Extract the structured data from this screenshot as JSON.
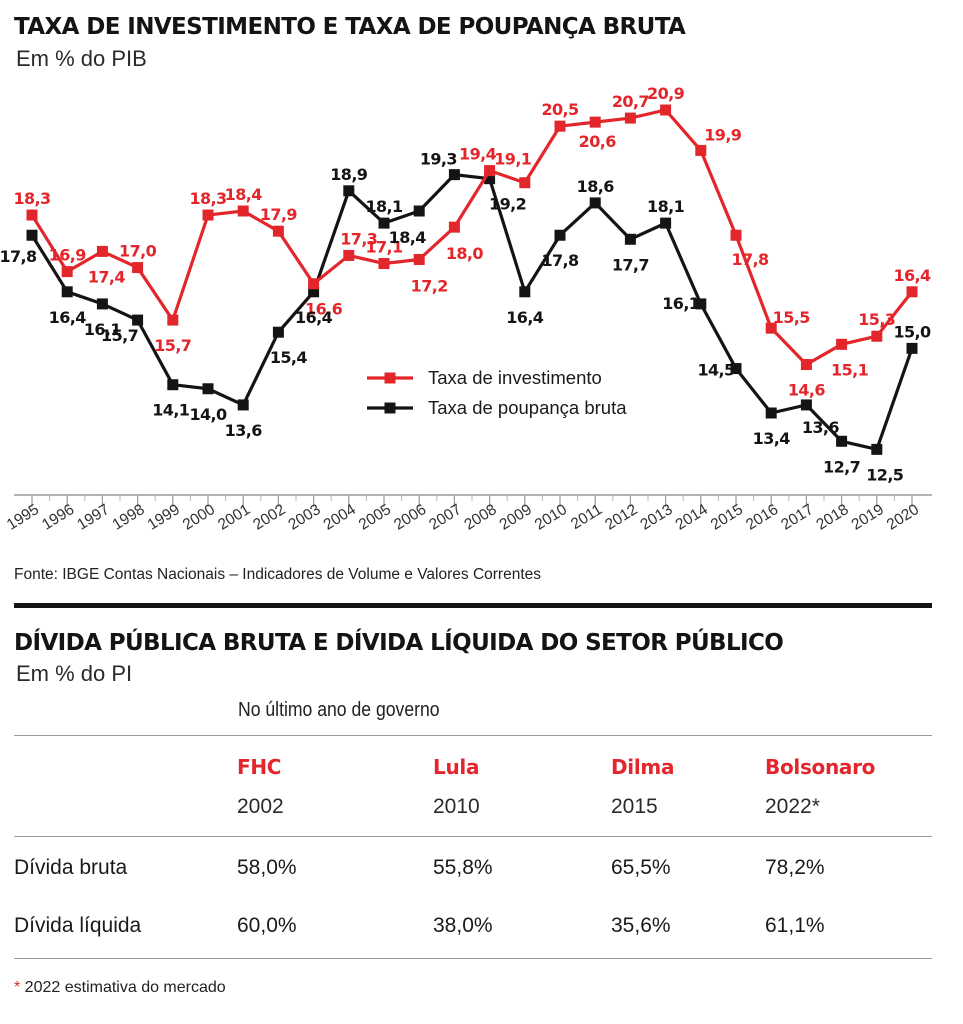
{
  "chart_data": {
    "type": "line",
    "title": "TAXA DE INVESTIMENTO E TAXA DE POUPANÇA BRUTA",
    "subtitle": "Em % do PIB",
    "x": [
      "1995",
      "1996",
      "1997",
      "1998",
      "1999",
      "2000",
      "2001",
      "2002",
      "2003",
      "2004",
      "2005",
      "2006",
      "2007",
      "2008",
      "2009",
      "2010",
      "2011",
      "2012",
      "2013",
      "2014",
      "2015",
      "2016",
      "2017",
      "2018",
      "2019",
      "2020"
    ],
    "series": [
      {
        "name": "Taxa de investimento",
        "color": "#e3262b",
        "values": [
          18.3,
          16.9,
          17.4,
          17.0,
          15.7,
          18.3,
          18.4,
          17.9,
          16.6,
          17.3,
          17.1,
          17.2,
          18.0,
          19.4,
          19.1,
          20.5,
          20.6,
          20.7,
          20.9,
          19.9,
          17.8,
          15.5,
          14.6,
          15.1,
          15.3,
          16.4
        ],
        "labels": [
          "18,3",
          "16,9",
          "17,4",
          "17,0",
          "15,7",
          "18,3",
          "18,4",
          "17,9",
          "16,6",
          "17,3",
          "17,1",
          "17,2",
          "18,0",
          "19,4",
          "19,1",
          "20,5",
          "20,6",
          "20,7",
          "20,9",
          "19,9",
          "17,8",
          "15,5",
          "14,6",
          "15,1",
          "15,3",
          "16,4"
        ]
      },
      {
        "name": "Taxa de poupança bruta",
        "color": "#141414",
        "values": [
          17.8,
          16.4,
          16.1,
          15.7,
          14.1,
          14.0,
          13.6,
          15.4,
          16.4,
          18.9,
          18.1,
          18.4,
          19.3,
          19.2,
          16.4,
          17.8,
          18.6,
          17.7,
          18.1,
          16.1,
          14.5,
          13.4,
          13.6,
          12.7,
          12.5,
          15.0
        ],
        "labels": [
          "17,8",
          "16,4",
          "16,1",
          "15,7",
          "14,1",
          "14,0",
          "13,6",
          "15,4",
          "16,4",
          "18,9",
          "18,1",
          "18,4",
          "19,3",
          "19,2",
          "16,4",
          "17,8",
          "18,6",
          "17,7",
          "18,1",
          "16,1",
          "14,5",
          "13,4",
          "13,6",
          "12,7",
          "12,5",
          "15,0"
        ]
      }
    ],
    "legend": "center",
    "grid": false,
    "source": "Fonte: IBGE Contas Nacionais – Indicadores de Volume e Valores Correntes"
  },
  "table": {
    "title": "DÍVIDA PÚBLICA BRUTA E DÍVIDA LÍQUIDA DO SETOR PÚBLICO",
    "subtitle": "Em % do PI",
    "note": "No último ano de governo",
    "columns": [
      {
        "gov": "FHC",
        "year": "2002"
      },
      {
        "gov": "Lula",
        "year": "2010"
      },
      {
        "gov": "Dilma",
        "year": "2015"
      },
      {
        "gov": "Bolsonaro",
        "year": "2022*"
      }
    ],
    "rows": [
      {
        "label": "Dívida bruta",
        "values": [
          "58,0%",
          "55,8%",
          "65,5%",
          "78,2%"
        ]
      },
      {
        "label": "Dívida líquida",
        "values": [
          "60,0%",
          "38,0%",
          "35,6%",
          "61,1%"
        ]
      }
    ],
    "footnote_mark": "*",
    "footnote": " 2022 estimativa do mercado"
  }
}
